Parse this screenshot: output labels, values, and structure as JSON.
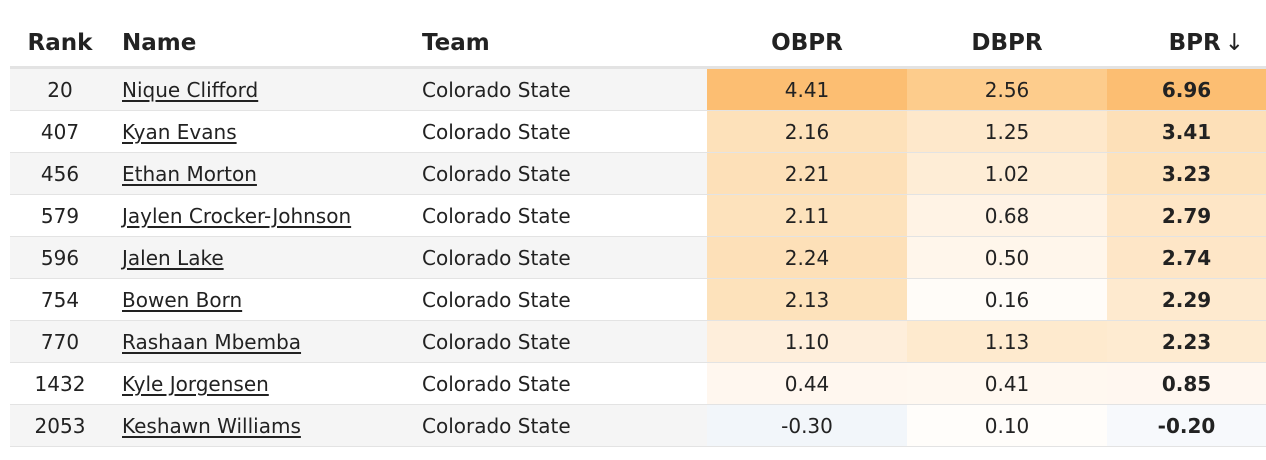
{
  "headers": {
    "rank": "Rank",
    "name": "Name",
    "team": "Team",
    "obpr": "OBPR",
    "dbpr": "DBPR",
    "bpr": "BPR",
    "sort_arrow": "↓"
  },
  "rows": [
    {
      "rank": "20",
      "name": "Nique Clifford",
      "team": "Colorado State",
      "obpr": "4.41",
      "dbpr": "2.56",
      "bpr": "6.96",
      "obpr_color": "#fcbe72",
      "dbpr_color": "#fdcc8c",
      "bpr_color": "#fcbe72"
    },
    {
      "rank": "407",
      "name": "Kyan Evans",
      "team": "Colorado State",
      "obpr": "2.16",
      "dbpr": "1.25",
      "bpr": "3.41",
      "obpr_color": "#fde1ba",
      "dbpr_color": "#fee8cb",
      "bpr_color": "#fde0b8"
    },
    {
      "rank": "456",
      "name": "Ethan Morton",
      "team": "Colorado State",
      "obpr": "2.21",
      "dbpr": "1.02",
      "bpr": "3.23",
      "obpr_color": "#fde0b8",
      "dbpr_color": "#feedd6",
      "bpr_color": "#fde2bc"
    },
    {
      "rank": "579",
      "name": "Jaylen Crocker-Johnson",
      "team": "Colorado State",
      "obpr": "2.11",
      "dbpr": "0.68",
      "bpr": "2.79",
      "obpr_color": "#fde2bc",
      "dbpr_color": "#fff3e5",
      "bpr_color": "#fee6c6"
    },
    {
      "rank": "596",
      "name": "Jalen Lake",
      "team": "Colorado State",
      "obpr": "2.24",
      "dbpr": "0.50",
      "bpr": "2.74",
      "obpr_color": "#fde0b8",
      "dbpr_color": "#fff6eb",
      "bpr_color": "#fee6c7"
    },
    {
      "rank": "754",
      "name": "Bowen Born",
      "team": "Colorado State",
      "obpr": "2.13",
      "dbpr": "0.16",
      "bpr": "2.29",
      "obpr_color": "#fde2bb",
      "dbpr_color": "#fffcf8",
      "bpr_color": "#feeacf"
    },
    {
      "rank": "770",
      "name": "Rashaan Mbemba",
      "team": "Colorado State",
      "obpr": "1.10",
      "dbpr": "1.13",
      "bpr": "2.23",
      "obpr_color": "#feeedb",
      "dbpr_color": "#feeace",
      "bpr_color": "#feebd1"
    },
    {
      "rank": "1432",
      "name": "Kyle Jorgensen",
      "team": "Colorado State",
      "obpr": "0.44",
      "dbpr": "0.41",
      "bpr": "0.85",
      "obpr_color": "#fff7ef",
      "dbpr_color": "#fff8f0",
      "bpr_color": "#fff7f0"
    },
    {
      "rank": "2053",
      "name": "Keshawn Williams",
      "team": "Colorado State",
      "obpr": "-0.30",
      "dbpr": "0.10",
      "bpr": "-0.20",
      "obpr_color": "#f2f6fa",
      "dbpr_color": "#fffdfa",
      "bpr_color": "#f7f9fc"
    }
  ]
}
